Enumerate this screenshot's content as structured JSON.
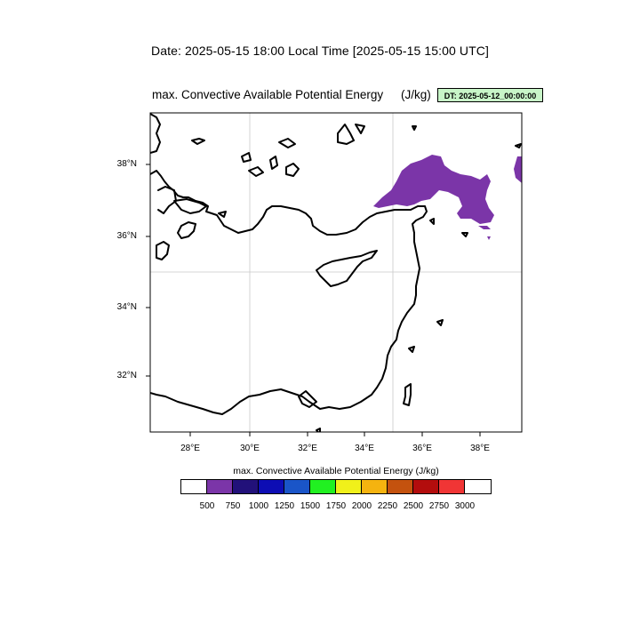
{
  "header": {
    "date_line": "Date: 2025-05-15  18:00 Local Time [2025-05-15  15:00 UTC]"
  },
  "map": {
    "title": "max. Convective Available Potential Energy",
    "units": "(J/kg)",
    "dt_badge": "DT: 2025-05-12_00:00:00",
    "lat_labels": [
      "38°N",
      "36°N",
      "34°N",
      "32°N"
    ],
    "lon_labels": [
      "28°E",
      "30°E",
      "32°E",
      "34°E",
      "36°E",
      "38°E"
    ],
    "cape_fill_color": "#7b35a8",
    "coast_color": "#000000",
    "grid_color": "#c8c8c8"
  },
  "colorbar": {
    "title": "max. Convective Available Potential Energy  (J/kg)",
    "colors": [
      "#ffffff",
      "#7b35a8",
      "#22117a",
      "#0d0db4",
      "#1a55c8",
      "#21f021",
      "#f0f01a",
      "#f5b30f",
      "#c4520e",
      "#b30d0d",
      "#f03535",
      "#ffffff"
    ],
    "tick_labels": [
      "500",
      "750",
      "1000",
      "1250",
      "1500",
      "1750",
      "2000",
      "2250",
      "2500",
      "2750",
      "3000"
    ]
  }
}
